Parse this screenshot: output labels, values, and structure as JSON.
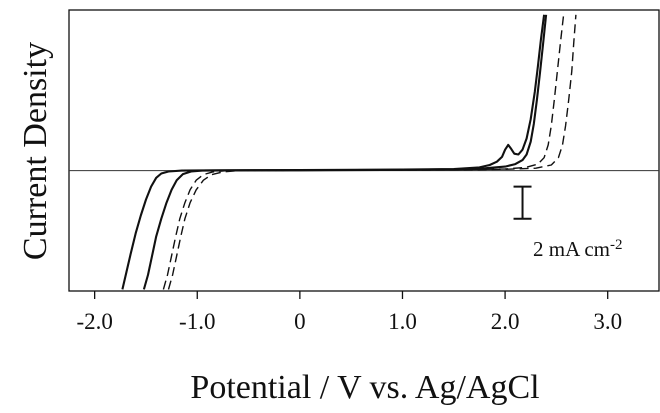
{
  "chart_data": {
    "type": "line",
    "title": "",
    "xlabel": "Potential / V vs. Ag/AgCl",
    "ylabel": "Current Density",
    "xlim": [
      -2.25,
      3.5
    ],
    "ylim": [
      -7.5,
      10.0
    ],
    "x_ticks": [
      -2.0,
      -1.0,
      0,
      1.0,
      2.0,
      3.0
    ],
    "x_tick_labels": [
      "-2.0",
      "-1.0",
      "0",
      "1.0",
      "2.0",
      "3.0"
    ],
    "y_tick_labels_shown": false,
    "zero_line": 0,
    "grid": false,
    "legend": "none",
    "scale_bar": {
      "value": 2,
      "label_main": "2 mA cm",
      "label_sup": "-2",
      "y_from": -3.0,
      "y_to": -1.0,
      "x": 2.17
    },
    "series": [
      {
        "style": "solid",
        "color": "#111111",
        "points": [
          [
            -1.73,
            -7.4
          ],
          [
            -1.7,
            -6.6
          ],
          [
            -1.65,
            -5.2
          ],
          [
            -1.6,
            -3.9
          ],
          [
            -1.55,
            -2.8
          ],
          [
            -1.5,
            -1.8
          ],
          [
            -1.45,
            -1.0
          ],
          [
            -1.4,
            -0.45
          ],
          [
            -1.35,
            -0.18
          ],
          [
            -1.28,
            -0.06
          ],
          [
            -1.15,
            0.0
          ],
          [
            -0.8,
            0.02
          ],
          [
            0.0,
            0.03
          ],
          [
            1.0,
            0.06
          ],
          [
            1.5,
            0.1
          ],
          [
            1.75,
            0.2
          ],
          [
            1.85,
            0.35
          ],
          [
            1.92,
            0.55
          ],
          [
            1.97,
            0.85
          ],
          [
            2.0,
            1.3
          ],
          [
            2.03,
            1.6
          ],
          [
            2.06,
            1.35
          ],
          [
            2.09,
            1.05
          ],
          [
            2.13,
            1.0
          ],
          [
            2.17,
            1.3
          ],
          [
            2.21,
            2.0
          ],
          [
            2.25,
            3.2
          ],
          [
            2.29,
            4.9
          ],
          [
            2.32,
            6.5
          ],
          [
            2.35,
            8.2
          ],
          [
            2.38,
            9.7
          ]
        ]
      },
      {
        "style": "solid",
        "color": "#111111",
        "points": [
          [
            -1.52,
            -7.4
          ],
          [
            -1.48,
            -6.5
          ],
          [
            -1.44,
            -5.3
          ],
          [
            -1.4,
            -4.1
          ],
          [
            -1.35,
            -3.0
          ],
          [
            -1.3,
            -2.0
          ],
          [
            -1.25,
            -1.2
          ],
          [
            -1.2,
            -0.6
          ],
          [
            -1.14,
            -0.22
          ],
          [
            -1.06,
            -0.06
          ],
          [
            -0.95,
            0.0
          ],
          [
            -0.5,
            0.02
          ],
          [
            0.0,
            0.02
          ],
          [
            1.0,
            0.05
          ],
          [
            1.5,
            0.08
          ],
          [
            1.8,
            0.14
          ],
          [
            2.0,
            0.25
          ],
          [
            2.1,
            0.4
          ],
          [
            2.17,
            0.65
          ],
          [
            2.21,
            1.0
          ],
          [
            2.25,
            1.8
          ],
          [
            2.28,
            2.9
          ],
          [
            2.31,
            4.4
          ],
          [
            2.34,
            6.1
          ],
          [
            2.37,
            7.9
          ],
          [
            2.4,
            9.7
          ]
        ]
      },
      {
        "style": "dashed",
        "color": "#111111",
        "points": [
          [
            -1.33,
            -7.4
          ],
          [
            -1.29,
            -6.5
          ],
          [
            -1.25,
            -5.3
          ],
          [
            -1.21,
            -4.1
          ],
          [
            -1.17,
            -3.0
          ],
          [
            -1.12,
            -2.0
          ],
          [
            -1.07,
            -1.2
          ],
          [
            -1.01,
            -0.6
          ],
          [
            -0.94,
            -0.25
          ],
          [
            -0.85,
            -0.08
          ],
          [
            -0.7,
            0.0
          ],
          [
            0.0,
            0.02
          ],
          [
            1.0,
            0.04
          ],
          [
            1.5,
            0.05
          ],
          [
            2.0,
            0.1
          ],
          [
            2.2,
            0.2
          ],
          [
            2.32,
            0.4
          ],
          [
            2.38,
            0.8
          ],
          [
            2.42,
            1.6
          ],
          [
            2.45,
            2.8
          ],
          [
            2.48,
            4.4
          ],
          [
            2.51,
            6.2
          ],
          [
            2.54,
            8.0
          ],
          [
            2.57,
            9.7
          ]
        ]
      },
      {
        "style": "dashed",
        "color": "#111111",
        "points": [
          [
            -1.28,
            -7.4
          ],
          [
            -1.24,
            -6.5
          ],
          [
            -1.2,
            -5.3
          ],
          [
            -1.16,
            -4.1
          ],
          [
            -1.12,
            -3.0
          ],
          [
            -1.07,
            -2.0
          ],
          [
            -1.01,
            -1.2
          ],
          [
            -0.94,
            -0.6
          ],
          [
            -0.86,
            -0.25
          ],
          [
            -0.75,
            -0.08
          ],
          [
            -0.6,
            0.0
          ],
          [
            0.0,
            0.02
          ],
          [
            1.0,
            0.03
          ],
          [
            1.5,
            0.04
          ],
          [
            2.0,
            0.08
          ],
          [
            2.3,
            0.15
          ],
          [
            2.45,
            0.35
          ],
          [
            2.52,
            0.8
          ],
          [
            2.56,
            1.6
          ],
          [
            2.59,
            2.8
          ],
          [
            2.62,
            4.4
          ],
          [
            2.65,
            6.2
          ],
          [
            2.67,
            8.0
          ],
          [
            2.69,
            9.7
          ]
        ]
      }
    ]
  }
}
